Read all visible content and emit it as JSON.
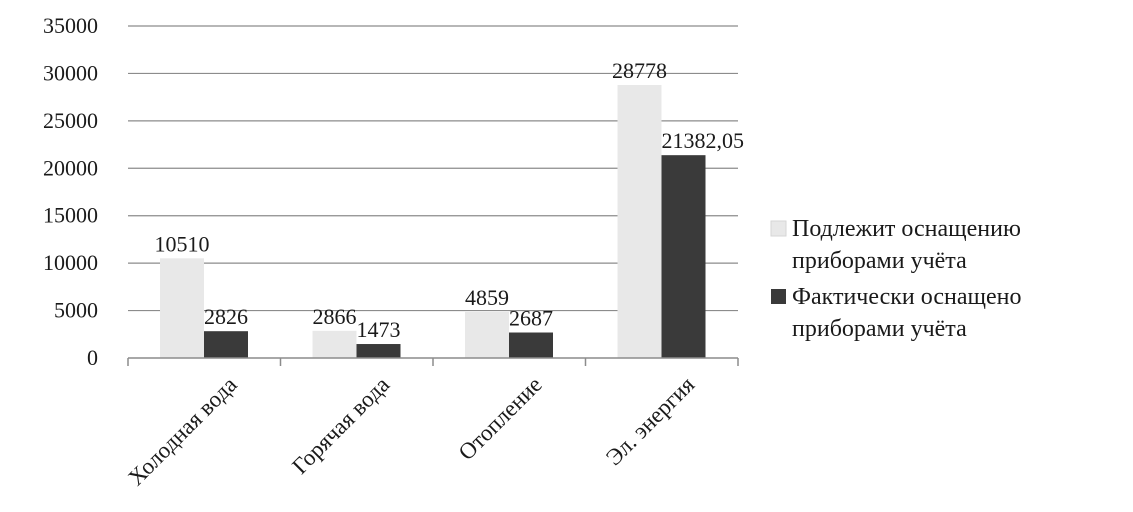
{
  "chart_data": {
    "type": "bar",
    "categories": [
      "Холодная вода",
      "Горячая вода",
      "Отопление",
      "Эл. энергия"
    ],
    "series": [
      {
        "name": "Подлежит оснащению приборами учёта",
        "values": [
          10510,
          2866,
          4859,
          28778
        ],
        "labels": [
          "10510",
          "2866",
          "4859",
          "28778"
        ],
        "color": "#e8e8e8"
      },
      {
        "name": "Фактически оснащено приборами учёта",
        "values": [
          2826,
          1473,
          2687,
          21382.05
        ],
        "labels": [
          "2826",
          "1473",
          "2687",
          "21382,05"
        ],
        "color": "#3a3a3a"
      }
    ],
    "ylim": [
      0,
      35000
    ],
    "yticks": [
      "0",
      "5000",
      "10000",
      "15000",
      "20000",
      "25000",
      "30000",
      "35000"
    ],
    "grid": true,
    "legend": "right",
    "legend_lines": [
      [
        "Подлежит оснащению",
        "приборами учёта"
      ],
      [
        "Фактически оснащено",
        "приборами учёта"
      ]
    ]
  }
}
